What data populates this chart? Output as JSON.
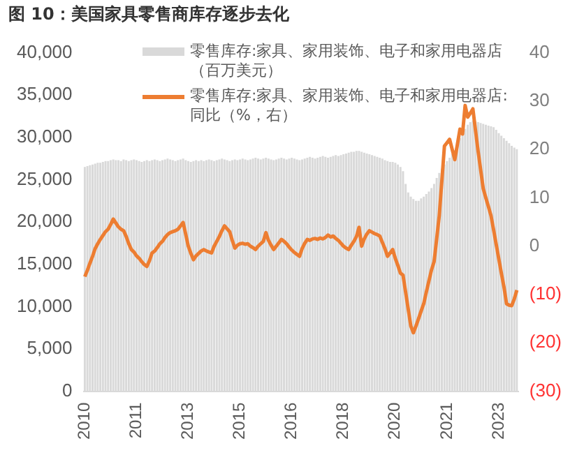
{
  "chart_data": {
    "type": "bar",
    "title": "图 10：美国家具零售商库存逐步去化",
    "categories": [
      "2010",
      null,
      null,
      null,
      null,
      null,
      null,
      null,
      null,
      null,
      null,
      null,
      null,
      null,
      null,
      null,
      null,
      null,
      null,
      null,
      "2011",
      null,
      null,
      null,
      null,
      null,
      null,
      null,
      null,
      null,
      null,
      null,
      null,
      null,
      null,
      null,
      null,
      null,
      null,
      null,
      "2013",
      null,
      null,
      null,
      null,
      null,
      null,
      null,
      null,
      null,
      null,
      null,
      null,
      null,
      null,
      null,
      null,
      null,
      null,
      null,
      "2015",
      null,
      null,
      null,
      null,
      null,
      null,
      null,
      null,
      null,
      null,
      null,
      null,
      null,
      null,
      null,
      null,
      null,
      null,
      null,
      "2016",
      null,
      null,
      null,
      null,
      null,
      null,
      null,
      null,
      null,
      null,
      null,
      null,
      null,
      null,
      null,
      null,
      null,
      null,
      null,
      "2018",
      null,
      null,
      null,
      null,
      null,
      null,
      null,
      null,
      null,
      null,
      null,
      null,
      null,
      null,
      null,
      null,
      null,
      null,
      null,
      "2020",
      null,
      null,
      null,
      null,
      null,
      null,
      null,
      null,
      null,
      null,
      null,
      null,
      null,
      null,
      null,
      null,
      null,
      null,
      null,
      "2021",
      null,
      null,
      null,
      null,
      null,
      null,
      null,
      null,
      null,
      null,
      null,
      null,
      null,
      null,
      null,
      null,
      null,
      null,
      null,
      "2023",
      null,
      null,
      null,
      null,
      null,
      null,
      null
    ],
    "series": [
      {
        "name": "零售库存:家具、家用装饰、电子和家用电器店（百万美元）",
        "color": "#d9d9d9",
        "values": [
          26500,
          26600,
          26700,
          26800,
          26900,
          27000,
          27000,
          27100,
          27200,
          27200,
          27300,
          27400,
          27300,
          27300,
          27200,
          27400,
          27300,
          27200,
          27300,
          27400,
          27300,
          27200,
          27100,
          27200,
          27300,
          27200,
          27300,
          27400,
          27300,
          27200,
          27300,
          27400,
          27500,
          27400,
          27300,
          27200,
          27300,
          27400,
          27500,
          27300,
          27200,
          27100,
          27200,
          27300,
          27200,
          27300,
          27200,
          27300,
          27400,
          27300,
          27200,
          27300,
          27400,
          27500,
          27400,
          27300,
          27200,
          27300,
          27400,
          27300,
          27400,
          27500,
          27400,
          27300,
          27400,
          27500,
          27600,
          27500,
          27400,
          27500,
          27600,
          27500,
          27400,
          27300,
          27400,
          27500,
          27600,
          27500,
          27400,
          27500,
          27600,
          27500,
          27400,
          27300,
          27400,
          27500,
          27600,
          27700,
          27600,
          27500,
          27600,
          27700,
          27800,
          27700,
          27600,
          27700,
          27800,
          27900,
          27800,
          27900,
          28000,
          28100,
          28200,
          28300,
          28300,
          28400,
          28400,
          28300,
          28200,
          28100,
          28000,
          27900,
          27800,
          27700,
          27600,
          27500,
          27300,
          27200,
          27100,
          27100,
          27000,
          26800,
          26500,
          26000,
          24500,
          23500,
          23000,
          22700,
          22500,
          22500,
          22800,
          23000,
          23300,
          23600,
          24000,
          24500,
          25200,
          25800,
          26300,
          26800,
          27200,
          27600,
          28000,
          28500,
          29200,
          29900,
          30500,
          31000,
          31500,
          31800,
          32000,
          31900,
          31800,
          31700,
          31600,
          31500,
          31400,
          31300,
          31200,
          30900,
          30500,
          30200,
          29900,
          29600,
          29300,
          29000,
          28800,
          28600
        ]
      },
      {
        "name": "零售库存:家具、家用装饰、电子和家用电器店:同比（%，右）",
        "type": "line",
        "axis": "y2",
        "color": "#ed7d31",
        "values": [
          -6.3,
          -5,
          -3.5,
          -2.1,
          -0.5,
          0.5,
          1.4,
          2.2,
          3,
          3.5,
          4.5,
          5.6,
          4.8,
          4,
          3.5,
          3.2,
          2,
          0.5,
          -0.7,
          -1.2,
          -2,
          -2.5,
          -3.2,
          -3.8,
          -4.2,
          -3,
          -1.4,
          -1,
          -0.3,
          0.5,
          1,
          1.8,
          2.4,
          2.8,
          3,
          3.2,
          3.5,
          4.2,
          4.9,
          2.5,
          0,
          -1.5,
          -2.8,
          -2,
          -1.5,
          -1,
          -0.7,
          -1,
          -1.2,
          -1.4,
          0,
          1,
          2,
          3.2,
          4.2,
          3.6,
          3,
          1.2,
          -0.4,
          0.2,
          0.5,
          0.6,
          0.4,
          0.5,
          0,
          -0.3,
          -0.7,
          0,
          0.5,
          1,
          2.8,
          1.2,
          0.2,
          -0.7,
          0,
          0.7,
          1.4,
          1,
          0.5,
          -0.2,
          -0.8,
          -1.3,
          -1.7,
          -2.1,
          -0.5,
          0.6,
          1.4,
          1.2,
          1.5,
          1.6,
          1.4,
          1.7,
          1.5,
          1.8,
          2.3,
          1.9,
          2.1,
          1.6,
          1.2,
          0.6,
          0,
          -0.4,
          -0.7,
          0.2,
          1,
          2,
          3.9,
          0,
          1.5,
          2.5,
          3.2,
          2.9,
          2.6,
          2.4,
          2.1,
          0.8,
          -0.5,
          -2.1,
          -1.4,
          -0.7,
          -2.5,
          -4,
          -5.6,
          -6,
          -9.5,
          -13,
          -16.5,
          -17.9,
          -16.5,
          -15,
          -13.4,
          -11.9,
          -9.5,
          -7.2,
          -4.9,
          -3.2,
          1.5,
          6.3,
          13.5,
          20.7,
          21.4,
          22.1,
          20,
          17.9,
          21,
          24.2,
          23.2,
          29.1,
          26.7,
          27.5,
          28.4,
          24,
          19.7,
          15.8,
          11.9,
          10,
          8.2,
          6.3,
          3.4,
          0.4,
          -2.6,
          -5.6,
          -8.4,
          -11.9,
          -12.2,
          -12.3,
          -10.9,
          -9.1
        ]
      }
    ],
    "ylim": [
      0,
      40000
    ],
    "yticks": [
      {
        "value": 0,
        "label": "0"
      },
      {
        "value": 5000,
        "label": "5,000"
      },
      {
        "value": 10000,
        "label": "10,000"
      },
      {
        "value": 15000,
        "label": "15,000"
      },
      {
        "value": 20000,
        "label": "20,000"
      },
      {
        "value": 25000,
        "label": "25,000"
      },
      {
        "value": 30000,
        "label": "30,000"
      },
      {
        "value": 35000,
        "label": "35,000"
      },
      {
        "value": 40000,
        "label": "40,000"
      }
    ],
    "y2lim": [
      -30,
      40
    ],
    "y2ticks": [
      {
        "value": -30,
        "label": "(30)"
      },
      {
        "value": -20,
        "label": "(20)"
      },
      {
        "value": -10,
        "label": "(10)"
      },
      0,
      10,
      20,
      30,
      40
    ],
    "grid": false,
    "legend": "top",
    "marker": "none",
    "line_style": "solid"
  }
}
